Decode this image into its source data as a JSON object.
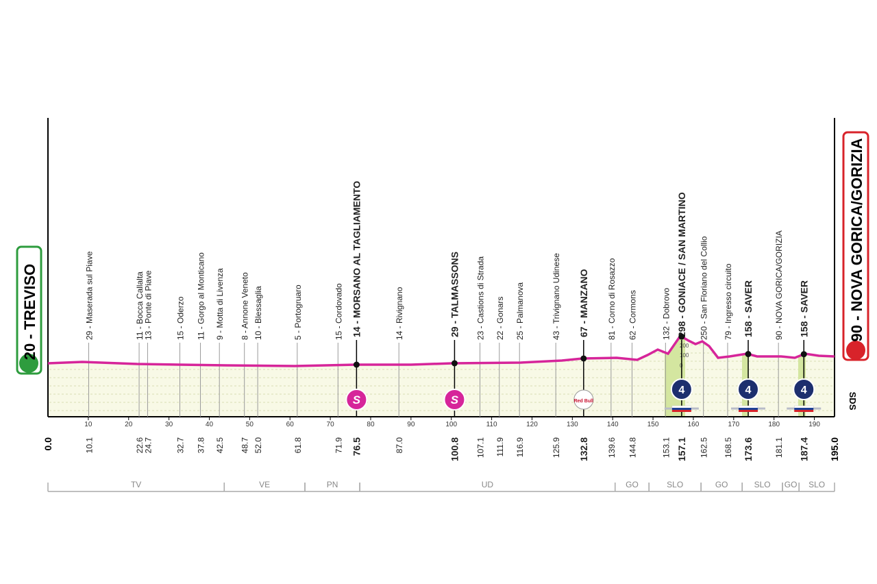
{
  "start": {
    "label": "20 - TREVISO"
  },
  "finish": {
    "label": "90 - NOVA GORICA/GORIZIA"
  },
  "distance": {
    "start": "0.0",
    "end": "195.0"
  },
  "axis_ticks": [
    10,
    20,
    30,
    40,
    50,
    60,
    70,
    80,
    90,
    100,
    110,
    120,
    130,
    140,
    150,
    160,
    170,
    180,
    190
  ],
  "waypoints": [
    {
      "km": "10.1",
      "label": "29 - Maserada sul Piave"
    },
    {
      "km": "22.6",
      "label": "11 - Bocca Callalta"
    },
    {
      "km": "24.7",
      "label": "13 - Ponte di Piave"
    },
    {
      "km": "32.7",
      "label": "15 - Oderzo"
    },
    {
      "km": "37.8",
      "label": "11 - Gorgo al Monticano"
    },
    {
      "km": "42.5",
      "label": "9 - Motta di Livenza"
    },
    {
      "km": "48.7",
      "label": "8 - Annone Veneto"
    },
    {
      "km": "52.0",
      "label": "10 - Blessaglia"
    },
    {
      "km": "61.8",
      "label": "5 - Portogruaro"
    },
    {
      "km": "71.9",
      "label": "15 - Cordovado"
    },
    {
      "km": "76.5",
      "label": "14 - MORSANO AL TAGLIAMENTO",
      "bold": true,
      "badge": "S"
    },
    {
      "km": "87.0",
      "label": "14 - Rivignano"
    },
    {
      "km": "100.8",
      "label": "29 - TALMASSONS",
      "bold": true,
      "badge": "S"
    },
    {
      "km": "107.1",
      "label": "23 - Castions di Strada"
    },
    {
      "km": "111.9",
      "label": "22 - Gonars"
    },
    {
      "km": "116.9",
      "label": "25 - Palmanova"
    },
    {
      "km": "125.9",
      "label": "43 - Trivignano Udinese"
    },
    {
      "km": "132.8",
      "label": "67 - MANZANO",
      "bold": true,
      "badge": "Red Bull"
    },
    {
      "km": "139.6",
      "label": "81 - Corno di Rosazzo"
    },
    {
      "km": "144.8",
      "label": "62 - Cormons"
    },
    {
      "km": "153.1",
      "label": "132 - Dobrovo"
    },
    {
      "km": "157.1",
      "label": "298 - GONIACE / SAN MARTINO",
      "bold": true,
      "badge": "4"
    },
    {
      "km": "162.5",
      "label": "250 - San Floriano del Collio"
    },
    {
      "km": "168.5",
      "label": "79 - Ingresso circuito"
    },
    {
      "km": "173.6",
      "label": "158 - SAVER",
      "bold": true,
      "badge": "4"
    },
    {
      "km": "181.1",
      "label": "90 - NOVA GORICA/GORIZIA"
    },
    {
      "km": "187.4",
      "label": "158 - SAVER",
      "bold": true,
      "badge": "4"
    }
  ],
  "regions": [
    {
      "name": "TV",
      "from": 0,
      "to": 43.7
    },
    {
      "name": "VE",
      "from": 43.7,
      "to": 63.7
    },
    {
      "name": "PN",
      "from": 63.7,
      "to": 77.3
    },
    {
      "name": "UD",
      "from": 77.3,
      "to": 140.6
    },
    {
      "name": "GO",
      "from": 140.6,
      "to": 149.0
    },
    {
      "name": "SLO",
      "from": 149.0,
      "to": 161.9
    },
    {
      "name": "GO",
      "from": 161.9,
      "to": 172.1
    },
    {
      "name": "SLO",
      "from": 172.1,
      "to": 182.1
    },
    {
      "name": "GO",
      "from": 182.1,
      "to": 186.2
    },
    {
      "name": "SLO",
      "from": 186.2,
      "to": 195.0
    }
  ],
  "climb_scale": [
    "200",
    "100",
    "0"
  ],
  "side_label": "SDS"
}
